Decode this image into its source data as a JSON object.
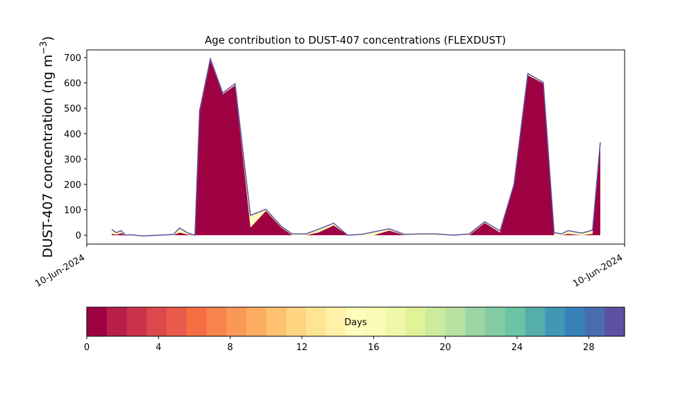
{
  "chart_data": {
    "type": "area",
    "title": "Age contribution to DUST-407 concentrations (FLEXDUST)",
    "ylabel": "DUST-407 concentration (ng m",
    "ylabel_sup": "−3",
    "ylabel_close": ")",
    "ylim": [
      -35,
      730
    ],
    "yticks": [
      0,
      100,
      200,
      300,
      400,
      500,
      600,
      700
    ],
    "xticks": [
      "10-Jun-2024",
      "10-Jun-2024"
    ],
    "x": [
      0.0,
      0.15,
      0.3,
      0.45,
      0.6,
      1.0,
      1.5,
      2.0,
      2.55,
      2.7,
      2.85,
      3.05,
      3.2,
      3.6,
      4.0,
      4.5,
      5.0,
      5.5,
      5.85,
      6.3,
      6.7,
      7.2,
      7.65,
      8.1,
      8.5,
      9.0,
      9.5,
      10.0,
      10.5,
      11.1,
      11.6,
      12.1,
      12.6,
      13.05,
      13.5,
      14.0,
      14.35,
      14.8,
      15.25,
      15.6
    ],
    "total": [
      22,
      10,
      18,
      0,
      2,
      -3,
      0,
      3,
      28,
      10,
      0,
      490,
      695,
      560,
      597,
      78,
      102,
      35,
      5,
      5,
      23,
      47,
      0,
      3,
      13,
      25,
      3,
      5,
      5,
      0,
      5,
      53,
      17,
      200,
      637,
      602,
      10,
      5,
      18,
      8,
      20,
      366
    ],
    "x_total": [
      0.0,
      0.15,
      0.3,
      0.45,
      0.6,
      1.0,
      1.5,
      2.0,
      2.2,
      2.45,
      2.7,
      2.85,
      3.2,
      3.6,
      4.0,
      4.5,
      5.0,
      5.5,
      5.85,
      6.3,
      6.7,
      7.2,
      7.65,
      8.1,
      8.5,
      9.0,
      9.5,
      10.0,
      10.5,
      11.1,
      11.6,
      12.1,
      12.6,
      13.05,
      13.5,
      14.0,
      14.35,
      14.6,
      14.8,
      15.25,
      15.6,
      15.85
    ],
    "young": [
      5,
      2,
      8,
      0,
      0,
      -2,
      -3,
      0,
      10,
      3,
      0,
      480,
      688,
      555,
      590,
      30,
      95,
      30,
      0,
      -2,
      10,
      38,
      0,
      0,
      0,
      18,
      0,
      0,
      0,
      -2,
      0,
      48,
      10,
      195,
      630,
      598,
      0,
      -2,
      5,
      0,
      5,
      350
    ],
    "series_colors": [
      "#9e0142",
      "#5e4fa2",
      "#fefebd",
      "#ffffbf"
    ],
    "colorbar": {
      "label": "Days",
      "ticks": [
        0,
        4,
        8,
        12,
        16,
        20,
        24,
        28
      ],
      "min": 0,
      "max": 30,
      "colors": [
        "#9e0142",
        "#b51f48",
        "#cb334c",
        "#dc494c",
        "#e85b4b",
        "#f46d43",
        "#f7834d",
        "#fa9857",
        "#fdad60",
        "#fdc171",
        "#fed481",
        "#fee593",
        "#fff1a8",
        "#fffdbc",
        "#f8fcb4",
        "#eef8a8",
        "#e1f398",
        "#cdeb9d",
        "#b7e2a1",
        "#9dd6a4",
        "#83cca5",
        "#6bc4a4",
        "#55aeab",
        "#4198b6",
        "#3882ba",
        "#466eb0",
        "#5e4fa2"
      ]
    }
  }
}
